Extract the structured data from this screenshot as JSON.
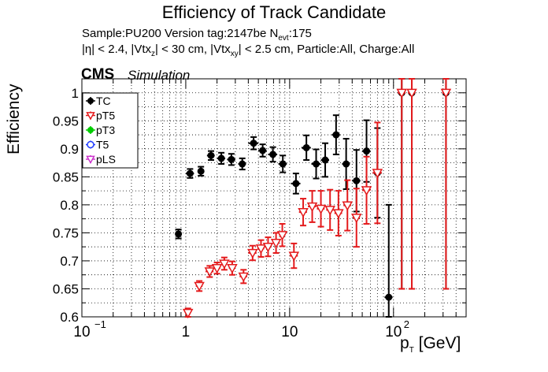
{
  "title": "Efficiency of Track Candidate",
  "info": {
    "line1": "Sample:PU200   Version tag:2147be  N",
    "line1_sub": "evt",
    "line1_tail": ":175",
    "line2": "|η| < 2.4, |Vtx",
    "line2_sub1": "z",
    "line2_mid": "| < 30 cm, |Vtx",
    "line2_sub2": "xy",
    "line2_tail": "| < 2.5 cm, Particle:All, Charge:All"
  },
  "experiment": "CMS",
  "experiment_note": "Simulation",
  "chart_data": {
    "type": "scatter",
    "title": "Efficiency of Track Candidate",
    "xlabel": "p",
    "xlabel_sub": "T",
    "xlabel_unit": " [GeV]",
    "ylabel": "Efficiency",
    "xscale": "log",
    "xlim": [
      0.1,
      500
    ],
    "ylim": [
      0.6,
      1.025
    ],
    "grid": true,
    "legend_position": "top-left",
    "x_ticks": [
      {
        "value": 0.1,
        "base": "10",
        "exp": "−1"
      },
      {
        "value": 1,
        "base": "1",
        "exp": ""
      },
      {
        "value": 10,
        "base": "10",
        "exp": ""
      },
      {
        "value": 100,
        "base": "10",
        "exp": "2"
      }
    ],
    "y_ticks": [
      0.6,
      0.65,
      0.7,
      0.75,
      0.8,
      0.85,
      0.9,
      0.95,
      1
    ],
    "y_tick_labels": [
      "0.6",
      "0.65",
      "0.7",
      "0.75",
      "0.8",
      "0.85",
      "0.9",
      "0.95",
      "1"
    ],
    "legend": [
      {
        "name": "TC",
        "color": "#000000",
        "marker": "filled-circle"
      },
      {
        "name": "pT5",
        "color": "#e41a1c",
        "marker": "open-triangle-down"
      },
      {
        "name": "pT3",
        "color": "#00cc00",
        "marker": "filled-circle"
      },
      {
        "name": "T5",
        "color": "#1f3bff",
        "marker": "open-circle"
      },
      {
        "name": "pLS",
        "color": "#cc33cc",
        "marker": "open-triangle-down"
      }
    ],
    "series": [
      {
        "name": "TC",
        "color": "#000000",
        "points": [
          {
            "x": 0.85,
            "xlo": 0.8,
            "xhi": 0.9,
            "y": 0.748,
            "err": 0.008
          },
          {
            "x": 1.1,
            "xlo": 1.0,
            "xhi": 1.2,
            "y": 0.856,
            "err": 0.008
          },
          {
            "x": 1.4,
            "xlo": 1.3,
            "xhi": 1.5,
            "y": 0.86,
            "err": 0.008
          },
          {
            "x": 1.75,
            "xlo": 1.6,
            "xhi": 1.9,
            "y": 0.888,
            "err": 0.008
          },
          {
            "x": 2.2,
            "xlo": 2.0,
            "xhi": 2.4,
            "y": 0.883,
            "err": 0.01
          },
          {
            "x": 2.75,
            "xlo": 2.5,
            "xhi": 3.0,
            "y": 0.881,
            "err": 0.01
          },
          {
            "x": 3.5,
            "xlo": 3.2,
            "xhi": 3.8,
            "y": 0.873,
            "err": 0.01
          },
          {
            "x": 4.5,
            "xlo": 4.0,
            "xhi": 5.0,
            "y": 0.91,
            "err": 0.011
          },
          {
            "x": 5.5,
            "xlo": 5.0,
            "xhi": 6.0,
            "y": 0.897,
            "err": 0.011
          },
          {
            "x": 6.9,
            "xlo": 6.2,
            "xhi": 7.6,
            "y": 0.89,
            "err": 0.013
          },
          {
            "x": 8.6,
            "xlo": 7.8,
            "xhi": 9.4,
            "y": 0.873,
            "err": 0.015
          },
          {
            "x": 11.5,
            "xlo": 10.3,
            "xhi": 12.7,
            "y": 0.838,
            "err": 0.018
          },
          {
            "x": 14.5,
            "xlo": 13.0,
            "xhi": 16.0,
            "y": 0.902,
            "err": 0.022
          },
          {
            "x": 18.0,
            "xlo": 16.2,
            "xhi": 19.8,
            "y": 0.873,
            "err": 0.026
          },
          {
            "x": 22.0,
            "xlo": 20.0,
            "xhi": 24.0,
            "y": 0.88,
            "err": 0.03
          },
          {
            "x": 28.0,
            "xlo": 25.5,
            "xhi": 30.5,
            "y": 0.925,
            "err": 0.035
          },
          {
            "x": 35.0,
            "xlo": 32.0,
            "xhi": 38.0,
            "y": 0.873,
            "err": 0.045
          },
          {
            "x": 44.0,
            "xlo": 40.0,
            "xhi": 48.0,
            "y": 0.843,
            "err": 0.055
          },
          {
            "x": 55.0,
            "xlo": 50.0,
            "xhi": 60.0,
            "y": 0.896,
            "err": 0.055
          },
          {
            "x": 70.0,
            "xlo": 63.0,
            "xhi": 77.0,
            "y": 0.857,
            "err": 0.08
          },
          {
            "x": 90.0,
            "xlo": 82.0,
            "xhi": 98.0,
            "y": 0.635,
            "err": 0.165
          },
          {
            "x": 120.0,
            "xlo": 110.0,
            "xhi": 130.0,
            "y": 1.0,
            "err": 0.35
          },
          {
            "x": 150.0,
            "xlo": 138.0,
            "xhi": 162.0,
            "y": 1.0,
            "err": 0.35
          },
          {
            "x": 320.0,
            "xlo": 295.0,
            "xhi": 345.0,
            "y": 1.0,
            "err": 0.35
          }
        ]
      },
      {
        "name": "pT5",
        "color": "#e41a1c",
        "points": [
          {
            "x": 1.05,
            "xlo": 1.0,
            "xhi": 1.1,
            "y": 0.607,
            "err": 0.008
          },
          {
            "x": 1.35,
            "xlo": 1.25,
            "xhi": 1.45,
            "y": 0.655,
            "err": 0.009
          },
          {
            "x": 1.7,
            "xlo": 1.55,
            "xhi": 1.85,
            "y": 0.681,
            "err": 0.01
          },
          {
            "x": 2.0,
            "xlo": 1.85,
            "xhi": 2.15,
            "y": 0.687,
            "err": 0.01
          },
          {
            "x": 2.35,
            "xlo": 2.2,
            "xhi": 2.5,
            "y": 0.695,
            "err": 0.011
          },
          {
            "x": 2.8,
            "xlo": 2.6,
            "xhi": 3.0,
            "y": 0.687,
            "err": 0.012
          },
          {
            "x": 3.6,
            "xlo": 3.3,
            "xhi": 3.9,
            "y": 0.672,
            "err": 0.012
          },
          {
            "x": 4.4,
            "xlo": 4.0,
            "xhi": 4.8,
            "y": 0.714,
            "err": 0.013
          },
          {
            "x": 5.3,
            "xlo": 4.9,
            "xhi": 5.7,
            "y": 0.722,
            "err": 0.015
          },
          {
            "x": 6.2,
            "xlo": 5.8,
            "xhi": 6.6,
            "y": 0.725,
            "err": 0.017
          },
          {
            "x": 7.4,
            "xlo": 6.9,
            "xhi": 7.9,
            "y": 0.732,
            "err": 0.018
          },
          {
            "x": 8.5,
            "xlo": 7.9,
            "xhi": 9.1,
            "y": 0.746,
            "err": 0.02
          },
          {
            "x": 11.0,
            "xlo": 10.0,
            "xhi": 12.0,
            "y": 0.709,
            "err": 0.022
          },
          {
            "x": 13.5,
            "xlo": 12.3,
            "xhi": 14.7,
            "y": 0.787,
            "err": 0.024
          },
          {
            "x": 16.5,
            "xlo": 15.0,
            "xhi": 18.0,
            "y": 0.797,
            "err": 0.028
          },
          {
            "x": 20.0,
            "xlo": 18.3,
            "xhi": 21.7,
            "y": 0.793,
            "err": 0.032
          },
          {
            "x": 24.5,
            "xlo": 22.5,
            "xhi": 26.5,
            "y": 0.791,
            "err": 0.036
          },
          {
            "x": 29.5,
            "xlo": 27.0,
            "xhi": 32.0,
            "y": 0.785,
            "err": 0.04
          },
          {
            "x": 36.0,
            "xlo": 33.0,
            "xhi": 39.0,
            "y": 0.799,
            "err": 0.045
          },
          {
            "x": 44.0,
            "xlo": 40.5,
            "xhi": 47.5,
            "y": 0.777,
            "err": 0.052
          },
          {
            "x": 55.0,
            "xlo": 50.0,
            "xhi": 60.0,
            "y": 0.826,
            "err": 0.06
          },
          {
            "x": 70.0,
            "xlo": 63.0,
            "xhi": 77.0,
            "y": 0.857,
            "err": 0.09
          },
          {
            "x": 120.0,
            "xlo": 110.0,
            "xhi": 130.0,
            "y": 1.0,
            "err": 0.35
          },
          {
            "x": 150.0,
            "xlo": 138.0,
            "xhi": 162.0,
            "y": 1.0,
            "err": 0.35
          },
          {
            "x": 320.0,
            "xlo": 295.0,
            "xhi": 345.0,
            "y": 1.0,
            "err": 0.35
          }
        ]
      }
    ]
  }
}
